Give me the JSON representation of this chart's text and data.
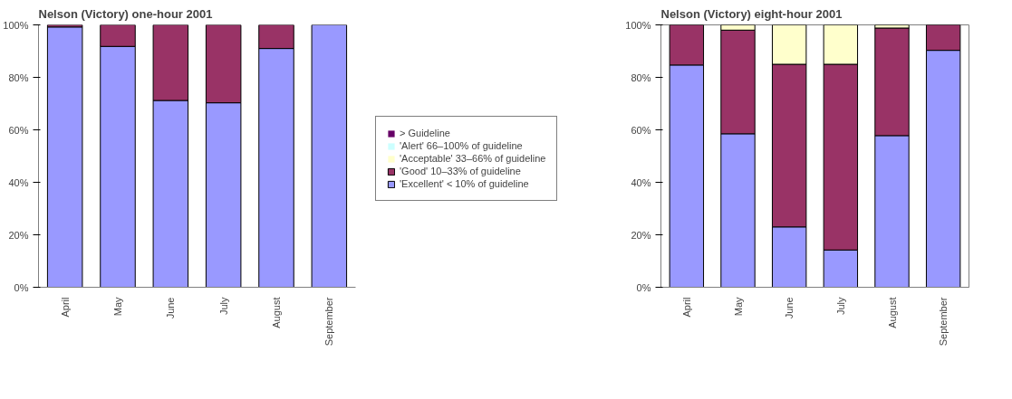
{
  "chart_data": [
    {
      "type": "bar",
      "title": "Nelson (Victory) one-hour 2001",
      "stacked": true,
      "categories": [
        "April",
        "May",
        "June",
        "July",
        "August",
        "September"
      ],
      "series": [
        {
          "name": "'Excellent' < 10% of guideline",
          "color": "#9999ff",
          "values": [
            99.2,
            91.8,
            71.2,
            70.3,
            91,
            100
          ]
        },
        {
          "name": "'Good' 10–33% of guideline",
          "color": "#993366",
          "values": [
            0.8,
            8.2,
            28.8,
            29.7,
            9,
            0
          ]
        },
        {
          "name": "'Acceptable' 33–66% of guideline",
          "color": "#ffffcc",
          "values": [
            0,
            0,
            0,
            0,
            0,
            0
          ]
        },
        {
          "name": "'Alert' 66–100% of guideline",
          "color": "#ccffff",
          "values": [
            0,
            0,
            0,
            0,
            0,
            0
          ]
        },
        {
          "name": "> Guideline",
          "color": "#660066",
          "values": [
            0,
            0,
            0,
            0,
            0,
            0
          ]
        }
      ],
      "ylim": [
        0,
        100
      ],
      "yticks": [
        {
          "value": 0,
          "label": "0%"
        },
        {
          "value": 20,
          "label": "20%"
        },
        {
          "value": 40,
          "label": "40%"
        },
        {
          "value": 60,
          "label": "60%"
        },
        {
          "value": 80,
          "label": "80%"
        },
        {
          "value": 100,
          "label": "100%"
        }
      ],
      "grid": false,
      "legend": "right"
    },
    {
      "type": "bar",
      "title": "Nelson (Victory) eight-hour 2001",
      "stacked": true,
      "categories": [
        "April",
        "May",
        "June",
        "July",
        "August",
        "September"
      ],
      "series": [
        {
          "color": "#9999ff",
          "values": [
            84.7,
            58.5,
            23,
            14.2,
            57.8,
            90.3
          ]
        },
        {
          "color": "#993366",
          "values": [
            15.3,
            39.5,
            62,
            70.8,
            41,
            9.7
          ]
        },
        {
          "color": "#ffffcc",
          "values": [
            0,
            2,
            15,
            15,
            1.2,
            0
          ]
        },
        {
          "color": "#ccffff",
          "values": [
            0,
            0,
            0,
            0,
            0,
            0
          ]
        },
        {
          "color": "#660066",
          "values": [
            0,
            0,
            0,
            0,
            0,
            0
          ]
        }
      ],
      "ylim": [
        0,
        100
      ],
      "yticks": [
        {
          "value": 0,
          "label": "0%"
        },
        {
          "value": 20,
          "label": "20%"
        },
        {
          "value": 40,
          "label": "40%"
        },
        {
          "value": 60,
          "label": "60%"
        },
        {
          "value": 80,
          "label": "80%"
        },
        {
          "value": 100,
          "label": "100%"
        }
      ],
      "grid": false
    }
  ]
}
